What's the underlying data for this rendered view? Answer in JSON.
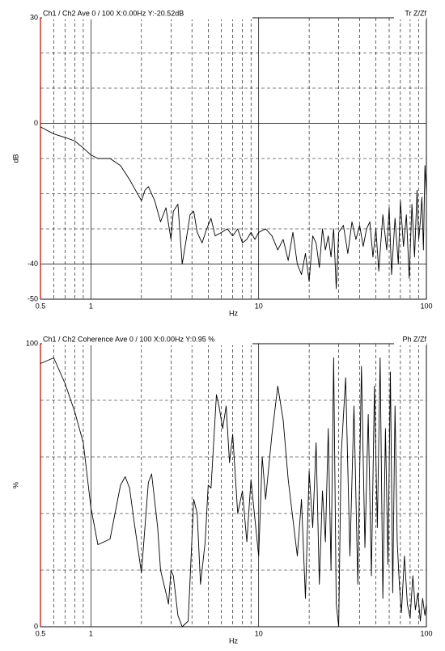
{
  "chart_data": [
    {
      "type": "line",
      "title": "Ch1 / Ch2  Ave 0 / 100  X:0.00Hz  Y:-20.52dB",
      "annotation": "Tr Z/Zf",
      "xlabel": "Hz",
      "ylabel": "dB",
      "xlog": true,
      "xlim": [
        0.5,
        100
      ],
      "ylim": [
        -50,
        30
      ],
      "xticks": [
        0.5,
        1,
        10,
        100
      ],
      "yticks": [
        30,
        0,
        -40,
        -50
      ],
      "xgrid": [
        0.6,
        0.7,
        0.8,
        0.9,
        2,
        3,
        4,
        5,
        6,
        7,
        8,
        9,
        20,
        30,
        40,
        50,
        60,
        70,
        80,
        90
      ],
      "ygrid": [
        20,
        10,
        -10,
        -20,
        -30
      ],
      "axis_color": "#c00000",
      "x": [
        0.5,
        0.6,
        0.7,
        0.8,
        0.9,
        1.0,
        1.1,
        1.3,
        1.5,
        1.7,
        2.0,
        2.1,
        2.2,
        2.4,
        2.6,
        2.8,
        3.0,
        3.1,
        3.3,
        3.5,
        3.7,
        3.9,
        4.1,
        4.3,
        4.6,
        4.9,
        5.2,
        5.5,
        6,
        6.5,
        7,
        7.5,
        8,
        8.5,
        9,
        9.5,
        10,
        11,
        12,
        13,
        14,
        15,
        16,
        17,
        18,
        19,
        20,
        21,
        22,
        23,
        24,
        25,
        26,
        27,
        28,
        29,
        30,
        32,
        34,
        36,
        38,
        40,
        42,
        44,
        46,
        48,
        50,
        52,
        55,
        58,
        60,
        62,
        65,
        68,
        70,
        73,
        76,
        79,
        82,
        85,
        88,
        90,
        92,
        94,
        96,
        98,
        100
      ],
      "series": [
        {
          "color": "#000000",
          "values": [
            -1,
            -3,
            -4,
            -5,
            -7,
            -9,
            -10,
            -10,
            -12,
            -16,
            -22,
            -19,
            -18,
            -22,
            -28,
            -24,
            -33,
            -25,
            -23,
            -40,
            -33,
            -26,
            -25,
            -31,
            -34,
            -30,
            -27,
            -32,
            -31,
            -30,
            -32,
            -30,
            -34,
            -33,
            -31,
            -33,
            -31,
            -30,
            -32,
            -36,
            -33,
            -39,
            -31,
            -40,
            -43,
            -37,
            -45,
            -32,
            -34,
            -41,
            -30,
            -36,
            -32,
            -38,
            -30,
            -47,
            -31,
            -29,
            -37,
            -28,
            -33,
            -29,
            -35,
            -30,
            -28,
            -38,
            -30,
            -42,
            -26,
            -36,
            -24,
            -43,
            -27,
            -40,
            -22,
            -35,
            -26,
            -44,
            -23,
            -38,
            -19,
            -33,
            -28,
            -21,
            -36,
            -12,
            -20
          ]
        }
      ]
    },
    {
      "type": "line",
      "title": "Ch1 / Ch2  Coherence Ave 0 / 100  X:0.00Hz  Y:0.95 %",
      "annotation": "Ph Z/Zf",
      "xlabel": "Hz",
      "ylabel": "%",
      "xlog": true,
      "xlim": [
        0.5,
        100
      ],
      "ylim": [
        0,
        100
      ],
      "xticks": [
        0.5,
        1,
        10,
        100
      ],
      "yticks": [
        100,
        0
      ],
      "xgrid": [
        0.6,
        0.7,
        0.8,
        0.9,
        2,
        3,
        4,
        5,
        6,
        7,
        8,
        9,
        20,
        30,
        40,
        50,
        60,
        70,
        80,
        90
      ],
      "ygrid": [
        80,
        60,
        40,
        20
      ],
      "axis_color": "#c00000",
      "x": [
        0.5,
        0.6,
        0.7,
        0.8,
        0.9,
        1.0,
        1.1,
        1.3,
        1.5,
        1.6,
        1.7,
        1.8,
        2.0,
        2.2,
        2.3,
        2.5,
        2.6,
        2.8,
        2.9,
        3.0,
        3.1,
        3.3,
        3.5,
        3.8,
        4.1,
        4.3,
        4.5,
        4.8,
        5.0,
        5.2,
        5.6,
        5.8,
        6.1,
        6.4,
        6.7,
        7.0,
        7.5,
        8,
        8.5,
        9,
        9.5,
        10,
        10.5,
        11,
        12,
        13,
        14,
        15,
        16,
        17,
        18,
        19,
        20,
        21,
        22,
        23,
        24,
        25,
        26,
        27,
        28,
        29,
        30,
        31,
        33,
        35,
        37,
        39,
        41,
        43,
        45,
        47,
        49,
        51,
        53,
        55,
        57,
        59,
        61,
        63,
        65,
        67,
        69,
        71,
        74,
        77,
        80,
        83,
        86,
        89,
        92,
        95,
        98,
        100
      ],
      "series": [
        {
          "color": "#000000",
          "values": [
            93,
            95,
            86,
            76,
            65,
            42,
            29,
            31,
            50,
            53,
            49,
            38,
            19,
            51,
            54,
            35,
            20,
            12,
            8,
            20,
            18,
            4,
            0,
            2,
            45,
            40,
            15,
            30,
            50,
            49,
            82,
            78,
            70,
            78,
            58,
            68,
            40,
            48,
            30,
            52,
            38,
            25,
            60,
            45,
            68,
            85,
            73,
            52,
            38,
            25,
            45,
            10,
            55,
            35,
            65,
            15,
            48,
            30,
            70,
            20,
            95,
            8,
            0,
            60,
            88,
            25,
            78,
            15,
            92,
            28,
            75,
            18,
            85,
            35,
            95,
            10,
            70,
            22,
            90,
            12,
            78,
            30,
            15,
            5,
            25,
            8,
            3,
            18,
            6,
            12,
            2,
            10,
            4,
            8
          ]
        }
      ]
    }
  ]
}
